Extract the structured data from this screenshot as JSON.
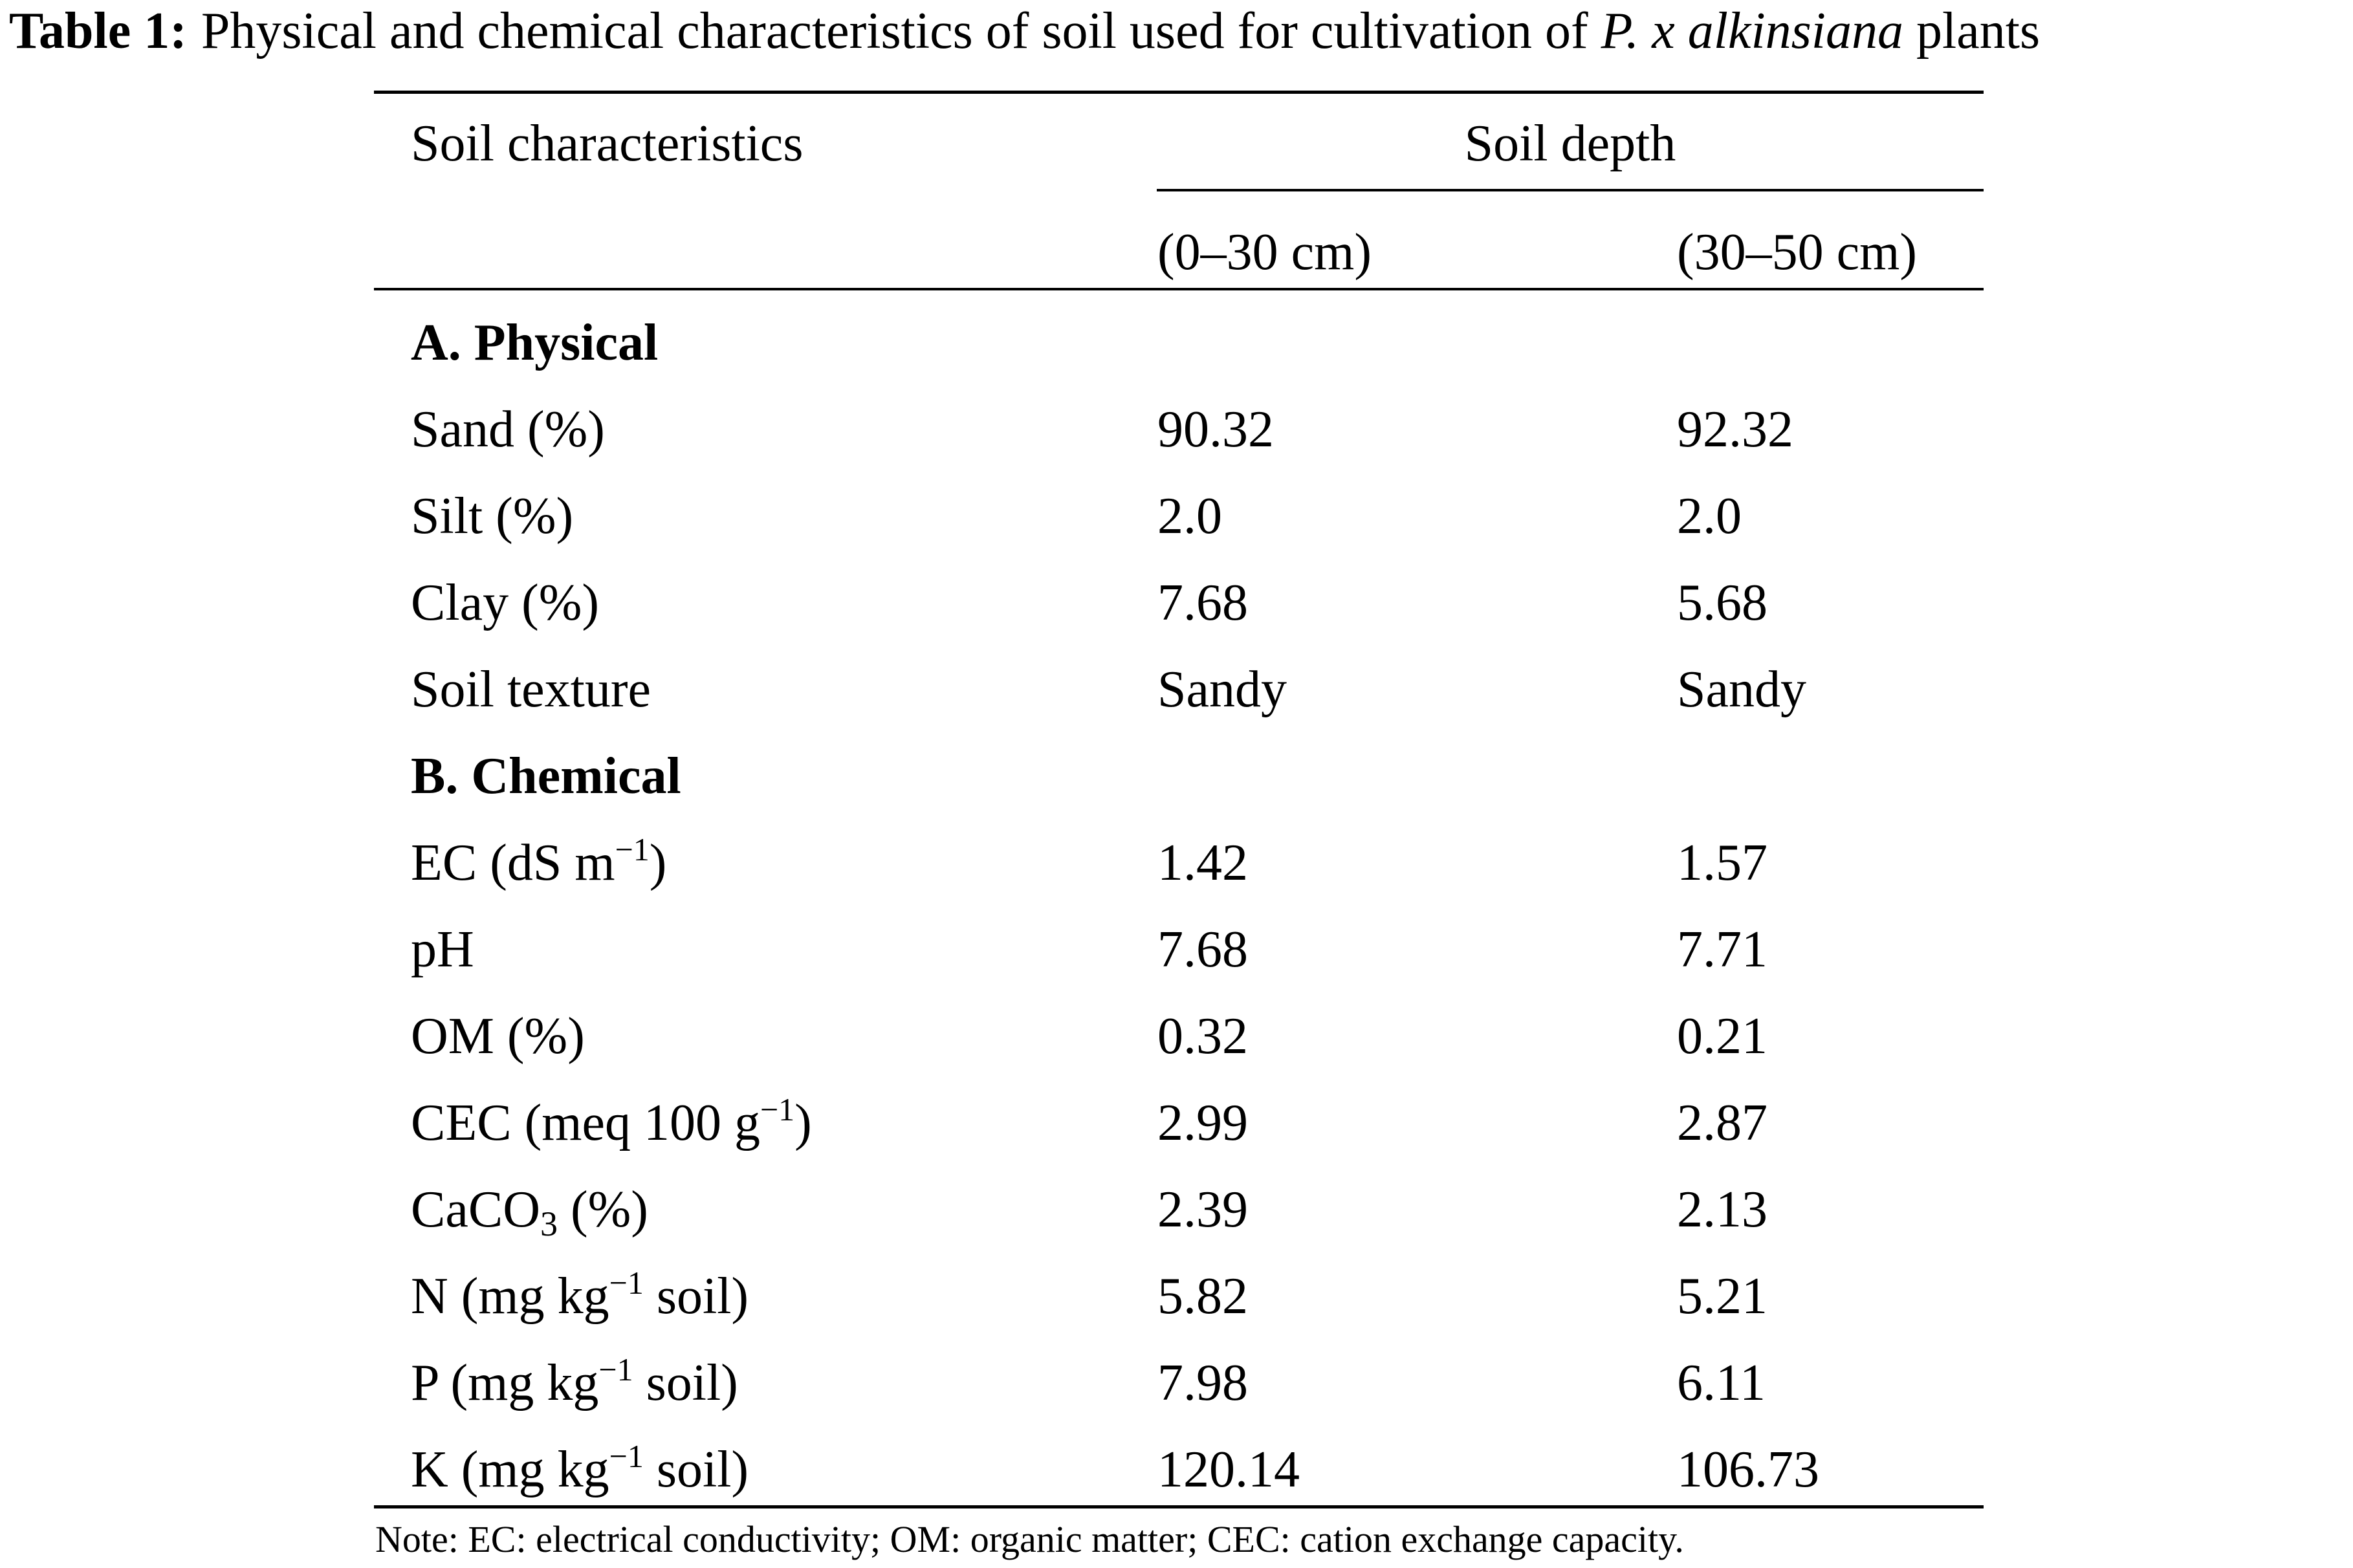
{
  "caption": {
    "label": "Table 1:",
    "text_before": "Physical and chemical characteristics of soil used for cultivation of",
    "species": "P. x alkinsiana",
    "text_after": "plants"
  },
  "header": {
    "col0": "Soil characteristics",
    "group": "Soil depth",
    "col1": "(0–30 cm)",
    "col2": "(30–50 cm)"
  },
  "sections": [
    {
      "title": "A. Physical",
      "rows": [
        {
          "param": "Sand (%)",
          "d1": "90.32",
          "d2": "92.32"
        },
        {
          "param": "Silt (%)",
          "d1": "2.0",
          "d2": "2.0"
        },
        {
          "param": "Clay (%)",
          "d1": "7.68",
          "d2": "5.68"
        },
        {
          "param": "Soil texture",
          "d1": "Sandy",
          "d2": "Sandy"
        }
      ]
    },
    {
      "title": "B. Chemical",
      "rows": [
        {
          "param_pre": "EC (dS m",
          "param_sup": "−1",
          "param_post": ")",
          "d1": "1.42",
          "d2": "1.57"
        },
        {
          "param": "pH",
          "d1": "7.68",
          "d2": "7.71"
        },
        {
          "param": "OM (%)",
          "d1": "0.32",
          "d2": "0.21"
        },
        {
          "param_pre": "CEC (meq 100 g",
          "param_sup": "−1",
          "param_post": ")",
          "d1": "2.99",
          "d2": "2.87"
        },
        {
          "param_pre": "CaCO",
          "param_sub": "3",
          "param_post": " (%)",
          "d1": "2.39",
          "d2": "2.13"
        },
        {
          "param_pre": "N (mg kg",
          "param_sup": "−1",
          "param_post": " soil)",
          "d1": "5.82",
          "d2": "5.21"
        },
        {
          "param_pre": "P (mg kg",
          "param_sup": "−1",
          "param_post": " soil)",
          "d1": "7.98",
          "d2": "6.11"
        },
        {
          "param_pre": "K (mg kg",
          "param_sup": "−1",
          "param_post": " soil)",
          "d1": "120.14",
          "d2": "106.73"
        }
      ]
    }
  ],
  "note": "Note: EC: electrical conductivity; OM: organic matter; CEC: cation exchange capacity."
}
